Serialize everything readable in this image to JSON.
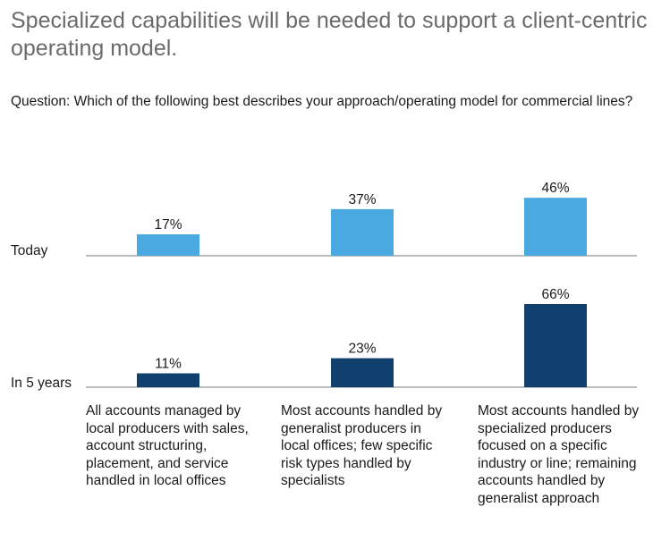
{
  "header": {
    "title": "Specialized capabilities will be needed to support a client-centric operating model.",
    "question": "Question: Which of the following best describes your approach/operating model for commercial lines?"
  },
  "chart_data": {
    "type": "bar",
    "categories": [
      "All accounts managed by local producers with sales, account structuring, placement, and service handled in local offices",
      "Most accounts handled by generalist producers in local offices; few specific risk types handled by specialists",
      "Most accounts handled by specialized producers focused on a specific industry or line; remaining accounts handled by generalist approach"
    ],
    "series": [
      {
        "name": "Today",
        "values": [
          17,
          37,
          46
        ],
        "labels": [
          "17%",
          "37%",
          "46%"
        ],
        "color": "#4aa9e0"
      },
      {
        "name": "In 5 years",
        "values": [
          11,
          23,
          66
        ],
        "labels": [
          "11%",
          "23%",
          "66%"
        ],
        "color": "#12406e"
      }
    ],
    "unit": "%",
    "ylim": [
      0,
      100
    ],
    "gridlines": false
  }
}
